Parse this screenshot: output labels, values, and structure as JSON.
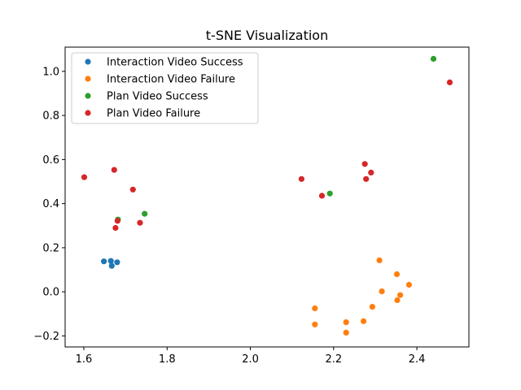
{
  "chart_data": {
    "type": "scatter",
    "title": "t-SNE Visualization",
    "xlabel": "",
    "ylabel": "",
    "xlim": [
      1.555,
      2.525
    ],
    "ylim": [
      -0.25,
      1.11
    ],
    "xticks": [
      "1.6",
      "1.8",
      "2.0",
      "2.2",
      "2.4"
    ],
    "yticks": [
      "−0.2",
      "0.0",
      "0.2",
      "0.4",
      "0.6",
      "0.8",
      "1.0"
    ],
    "legend_position": "upper-left",
    "series": [
      {
        "name": "Interaction Video Success",
        "color": "#1f77b4",
        "points": [
          [
            1.648,
            0.138
          ],
          [
            1.665,
            0.14
          ],
          [
            1.667,
            0.118
          ],
          [
            1.68,
            0.134
          ]
        ]
      },
      {
        "name": "Interaction Video Failure",
        "color": "#ff7f0e",
        "points": [
          [
            2.155,
            -0.075
          ],
          [
            2.155,
            -0.148
          ],
          [
            2.23,
            -0.138
          ],
          [
            2.23,
            -0.185
          ],
          [
            2.272,
            -0.133
          ],
          [
            2.293,
            -0.068
          ],
          [
            2.31,
            0.143
          ],
          [
            2.316,
            0.002
          ],
          [
            2.352,
            0.08
          ],
          [
            2.353,
            -0.038
          ],
          [
            2.36,
            -0.015
          ],
          [
            2.381,
            0.032
          ]
        ]
      },
      {
        "name": "Plan Video Success",
        "color": "#2ca02c",
        "points": [
          [
            1.682,
            0.328
          ],
          [
            1.746,
            0.354
          ],
          [
            2.191,
            0.446
          ],
          [
            2.44,
            1.057
          ]
        ]
      },
      {
        "name": "Plan Video Failure",
        "color": "#d62728",
        "points": [
          [
            1.601,
            0.52
          ],
          [
            1.673,
            0.553
          ],
          [
            1.718,
            0.464
          ],
          [
            1.735,
            0.313
          ],
          [
            1.681,
            0.322
          ],
          [
            1.676,
            0.29
          ],
          [
            2.123,
            0.512
          ],
          [
            2.172,
            0.436
          ],
          [
            2.275,
            0.58
          ],
          [
            2.278,
            0.512
          ],
          [
            2.29,
            0.541
          ],
          [
            2.479,
            0.95
          ]
        ]
      }
    ]
  }
}
